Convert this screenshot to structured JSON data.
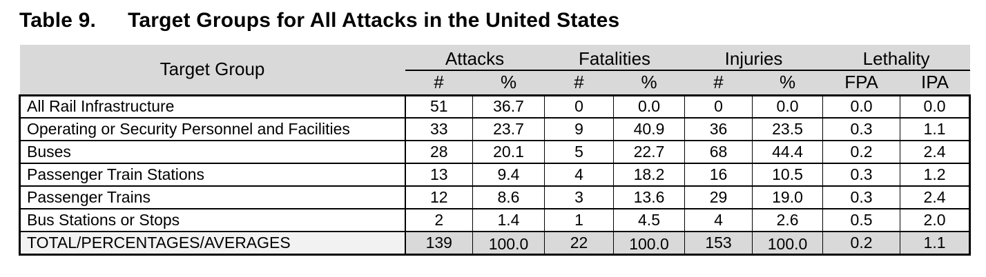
{
  "title": {
    "label": "Table 9.",
    "text": "Target Groups for All Attacks in the United States"
  },
  "table": {
    "header": {
      "target_group": "Target Group",
      "groups": [
        {
          "label": "Attacks",
          "sub": [
            "#",
            "%"
          ]
        },
        {
          "label": "Fatalities",
          "sub": [
            "#",
            "%"
          ]
        },
        {
          "label": "Injuries",
          "sub": [
            "#",
            "%"
          ]
        },
        {
          "label": "Lethality",
          "sub": [
            "FPA",
            "IPA"
          ]
        }
      ]
    },
    "rows": [
      {
        "target_group": "All Rail Infrastructure",
        "values": [
          "51",
          "36.7",
          "0",
          "0.0",
          "0",
          "0.0",
          "0.0",
          "0.0"
        ]
      },
      {
        "target_group": "Operating or Security Personnel and Facilities",
        "values": [
          "33",
          "23.7",
          "9",
          "40.9",
          "36",
          "23.5",
          "0.3",
          "1.1"
        ]
      },
      {
        "target_group": "Buses",
        "values": [
          "28",
          "20.1",
          "5",
          "22.7",
          "68",
          "44.4",
          "0.2",
          "2.4"
        ]
      },
      {
        "target_group": "Passenger Train Stations",
        "values": [
          "13",
          "9.4",
          "4",
          "18.2",
          "16",
          "10.5",
          "0.3",
          "1.2"
        ]
      },
      {
        "target_group": "Passenger Trains",
        "values": [
          "12",
          "8.6",
          "3",
          "13.6",
          "29",
          "19.0",
          "0.3",
          "2.4"
        ]
      },
      {
        "target_group": "Bus Stations or Stops",
        "values": [
          "2",
          "1.4",
          "1",
          "4.5",
          "4",
          "2.6",
          "0.5",
          "2.0"
        ]
      }
    ],
    "total_row": {
      "target_group": "TOTAL/PERCENTAGES/AVERAGES",
      "values": [
        "139",
        "100.0",
        "22",
        "100.0",
        "153",
        "100.0",
        "0.2",
        "1.1"
      ],
      "dropped_indices": [
        1,
        3,
        5
      ]
    }
  },
  "colors": {
    "header_bg": "#d9d9d9",
    "total_label_bg": "#f2f2f2",
    "total_value_bg": "#d9d9d9",
    "grid": "#000000"
  }
}
